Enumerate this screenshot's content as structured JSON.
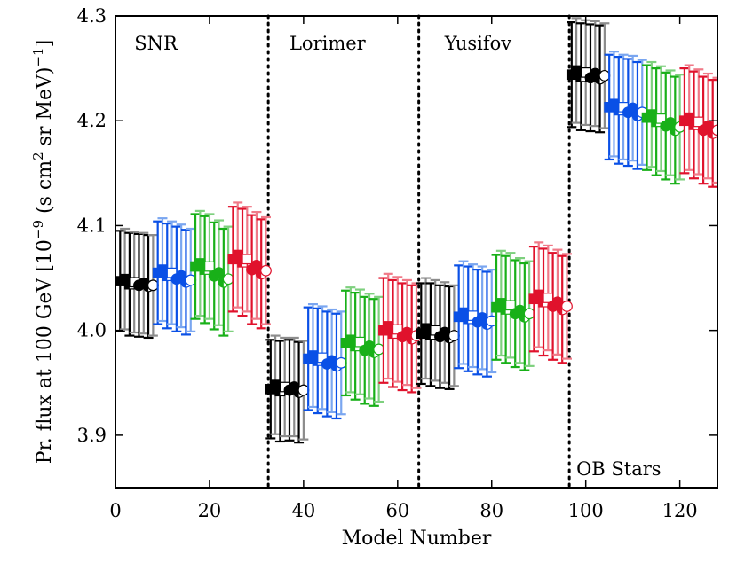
{
  "chart_data": {
    "type": "scatter",
    "title": "",
    "xlabel": "Model Number",
    "ylabel_parts": {
      "pre": "Pr. flux at 100 GeV [10",
      "exp1": "−9",
      "mid": " (s cm",
      "exp2": "2",
      "post": " sr MeV)",
      "exp3": "−1",
      "end": "]"
    },
    "xlim": [
      0,
      128
    ],
    "ylim": [
      3.85,
      4.3
    ],
    "x_ticks": [
      0,
      20,
      40,
      60,
      80,
      100,
      120
    ],
    "x_tick_labels": [
      "0",
      "20",
      "40",
      "60",
      "80",
      "100",
      "120"
    ],
    "y_ticks": [
      3.9,
      4.0,
      4.1,
      4.2,
      4.3
    ],
    "y_tick_labels": [
      "3.9",
      "4.0",
      "4.1",
      "4.2",
      "4.3"
    ],
    "grid": false,
    "separators": [
      32.5,
      64.5,
      96.5
    ],
    "regions": [
      {
        "label": "SNR",
        "x": 4,
        "y": 4.268
      },
      {
        "label": "Lorimer",
        "x": 37,
        "y": 4.268
      },
      {
        "label": "Yusifov",
        "x": 70,
        "y": 4.268
      },
      {
        "label": "OB Stars",
        "x": 98,
        "y": 3.862
      }
    ],
    "colors": {
      "black": "#000000",
      "gray": "#8c8c8c",
      "blue": "#0a50e6",
      "lightblue": "#7aa6f0",
      "green": "#18b018",
      "lightgreen": "#7ed07e",
      "red": "#e0122c",
      "lightred": "#f07a88"
    },
    "series": [
      {
        "name": "SNR-black",
        "color_key": "black",
        "err_color_key": "gray",
        "x": [
          1,
          2,
          3,
          4,
          5,
          6,
          7,
          8
        ],
        "y": [
          4.047,
          4.049,
          4.044,
          4.046,
          4.043,
          4.045,
          4.042,
          4.043
        ],
        "err": [
          0.048,
          0.048,
          0.049,
          0.048,
          0.049,
          0.048,
          0.049,
          0.048
        ],
        "markers": [
          "s",
          "s",
          "s",
          "s",
          "o",
          "o",
          "o",
          "o"
        ],
        "fills": [
          "full",
          "full",
          "half",
          "open",
          "full",
          "full",
          "half",
          "open"
        ]
      },
      {
        "name": "SNR-blue",
        "color_key": "blue",
        "err_color_key": "lightblue",
        "x": [
          9,
          10,
          11,
          12,
          13,
          14,
          15,
          16
        ],
        "y": [
          4.055,
          4.058,
          4.052,
          4.055,
          4.049,
          4.052,
          4.046,
          4.048
        ],
        "err": [
          0.049,
          0.049,
          0.05,
          0.049,
          0.05,
          0.049,
          0.05,
          0.049
        ],
        "markers": [
          "s",
          "s",
          "s",
          "s",
          "o",
          "o",
          "o",
          "o"
        ],
        "fills": [
          "full",
          "full",
          "half",
          "open",
          "full",
          "full",
          "half",
          "open"
        ]
      },
      {
        "name": "SNR-green",
        "color_key": "green",
        "err_color_key": "lightgreen",
        "x": [
          17,
          18,
          19,
          20,
          21,
          22,
          23,
          24
        ],
        "y": [
          4.061,
          4.064,
          4.058,
          4.061,
          4.052,
          4.055,
          4.046,
          4.049
        ],
        "err": [
          0.05,
          0.05,
          0.051,
          0.05,
          0.051,
          0.05,
          0.051,
          0.05
        ],
        "markers": [
          "s",
          "s",
          "s",
          "s",
          "o",
          "o",
          "o",
          "o"
        ],
        "fills": [
          "full",
          "full",
          "half",
          "open",
          "full",
          "full",
          "half",
          "open"
        ]
      },
      {
        "name": "SNR-red",
        "color_key": "red",
        "err_color_key": "lightred",
        "x": [
          25,
          26,
          27,
          28,
          29,
          30,
          31,
          32
        ],
        "y": [
          4.068,
          4.072,
          4.065,
          4.068,
          4.058,
          4.062,
          4.054,
          4.057
        ],
        "err": [
          0.05,
          0.05,
          0.051,
          0.05,
          0.052,
          0.051,
          0.052,
          0.051
        ],
        "markers": [
          "s",
          "s",
          "s",
          "s",
          "o",
          "o",
          "o",
          "o"
        ],
        "fills": [
          "full",
          "full",
          "half",
          "open",
          "full",
          "full",
          "half",
          "open"
        ]
      },
      {
        "name": "Lorimer-black",
        "color_key": "black",
        "err_color_key": "gray",
        "x": [
          33,
          34,
          35,
          36,
          37,
          38,
          39,
          40
        ],
        "y": [
          3.944,
          3.948,
          3.942,
          3.946,
          3.943,
          3.946,
          3.941,
          3.943
        ],
        "err": [
          0.047,
          0.047,
          0.048,
          0.047,
          0.048,
          0.047,
          0.048,
          0.047
        ],
        "markers": [
          "s",
          "s",
          "s",
          "s",
          "o",
          "o",
          "o",
          "o"
        ],
        "fills": [
          "full",
          "full",
          "half",
          "open",
          "full",
          "full",
          "half",
          "open"
        ]
      },
      {
        "name": "Lorimer-blue",
        "color_key": "blue",
        "err_color_key": "lightblue",
        "x": [
          41,
          42,
          43,
          44,
          45,
          46,
          47,
          48
        ],
        "y": [
          3.973,
          3.976,
          3.971,
          3.974,
          3.968,
          3.971,
          3.966,
          3.969
        ],
        "err": [
          0.049,
          0.049,
          0.05,
          0.049,
          0.05,
          0.049,
          0.05,
          0.049
        ],
        "markers": [
          "s",
          "s",
          "s",
          "s",
          "o",
          "o",
          "o",
          "o"
        ],
        "fills": [
          "full",
          "full",
          "half",
          "open",
          "full",
          "full",
          "half",
          "open"
        ]
      },
      {
        "name": "Lorimer-green",
        "color_key": "green",
        "err_color_key": "lightgreen",
        "x": [
          49,
          50,
          51,
          52,
          53,
          54,
          55,
          56
        ],
        "y": [
          3.988,
          3.991,
          3.985,
          3.989,
          3.981,
          3.985,
          3.979,
          3.982
        ],
        "err": [
          0.05,
          0.05,
          0.051,
          0.05,
          0.051,
          0.05,
          0.051,
          0.05
        ],
        "markers": [
          "s",
          "s",
          "s",
          "s",
          "o",
          "o",
          "o",
          "o"
        ],
        "fills": [
          "full",
          "full",
          "half",
          "open",
          "full",
          "full",
          "half",
          "open"
        ]
      },
      {
        "name": "Lorimer-red",
        "color_key": "red",
        "err_color_key": "lightred",
        "x": [
          57,
          58,
          59,
          60,
          61,
          62,
          63,
          64
        ],
        "y": [
          4.0,
          4.004,
          3.997,
          4.001,
          3.994,
          3.998,
          3.992,
          3.995
        ],
        "err": [
          0.05,
          0.05,
          0.051,
          0.05,
          0.051,
          0.05,
          0.051,
          0.05
        ],
        "markers": [
          "s",
          "s",
          "s",
          "s",
          "o",
          "o",
          "o",
          "o"
        ],
        "fills": [
          "full",
          "full",
          "half",
          "open",
          "full",
          "full",
          "half",
          "open"
        ]
      },
      {
        "name": "Yusifov-black",
        "color_key": "black",
        "err_color_key": "gray",
        "x": [
          65,
          66,
          67,
          68,
          69,
          70,
          71,
          72
        ],
        "y": [
          3.997,
          4.002,
          3.996,
          4.0,
          3.994,
          3.998,
          3.993,
          3.995
        ],
        "err": [
          0.048,
          0.048,
          0.049,
          0.048,
          0.049,
          0.048,
          0.049,
          0.048
        ],
        "markers": [
          "s",
          "s",
          "s",
          "s",
          "o",
          "o",
          "o",
          "o"
        ],
        "fills": [
          "full",
          "full",
          "half",
          "open",
          "full",
          "full",
          "half",
          "open"
        ]
      },
      {
        "name": "Yusifov-blue",
        "color_key": "blue",
        "err_color_key": "lightblue",
        "x": [
          73,
          74,
          75,
          76,
          77,
          78,
          79,
          80
        ],
        "y": [
          4.013,
          4.017,
          4.011,
          4.014,
          4.008,
          4.012,
          4.006,
          4.009
        ],
        "err": [
          0.049,
          0.049,
          0.05,
          0.049,
          0.05,
          0.049,
          0.05,
          0.049
        ],
        "markers": [
          "s",
          "s",
          "s",
          "s",
          "o",
          "o",
          "o",
          "o"
        ],
        "fills": [
          "full",
          "full",
          "half",
          "open",
          "full",
          "full",
          "half",
          "open"
        ]
      },
      {
        "name": "Yusifov-green",
        "color_key": "green",
        "err_color_key": "lightgreen",
        "x": [
          81,
          82,
          83,
          84,
          85,
          86,
          87,
          88
        ],
        "y": [
          4.022,
          4.026,
          4.02,
          4.024,
          4.016,
          4.019,
          4.013,
          4.016
        ],
        "err": [
          0.05,
          0.05,
          0.051,
          0.05,
          0.051,
          0.05,
          0.051,
          0.05
        ],
        "markers": [
          "s",
          "s",
          "s",
          "s",
          "o",
          "o",
          "o",
          "o"
        ],
        "fills": [
          "full",
          "full",
          "half",
          "open",
          "full",
          "full",
          "half",
          "open"
        ]
      },
      {
        "name": "Yusifov-red",
        "color_key": "red",
        "err_color_key": "lightred",
        "x": [
          89,
          90,
          91,
          92,
          93,
          94,
          95,
          96
        ],
        "y": [
          4.03,
          4.034,
          4.027,
          4.031,
          4.023,
          4.027,
          4.02,
          4.023
        ],
        "err": [
          0.05,
          0.05,
          0.051,
          0.05,
          0.051,
          0.05,
          0.051,
          0.05
        ],
        "markers": [
          "s",
          "s",
          "s",
          "s",
          "o",
          "o",
          "o",
          "o"
        ],
        "fills": [
          "full",
          "full",
          "half",
          "open",
          "full",
          "full",
          "half",
          "open"
        ]
      },
      {
        "name": "OB-black",
        "color_key": "black",
        "err_color_key": "gray",
        "x": [
          97,
          98,
          99,
          100,
          101,
          102,
          103,
          104
        ],
        "y": [
          4.244,
          4.248,
          4.242,
          4.246,
          4.241,
          4.245,
          4.24,
          4.243
        ],
        "err": [
          0.05,
          0.05,
          0.051,
          0.05,
          0.051,
          0.05,
          0.051,
          0.05
        ],
        "markers": [
          "s",
          "s",
          "s",
          "s",
          "o",
          "o",
          "o",
          "o"
        ],
        "fills": [
          "full",
          "full",
          "half",
          "open",
          "full",
          "full",
          "half",
          "open"
        ]
      },
      {
        "name": "OB-blue",
        "color_key": "blue",
        "err_color_key": "lightblue",
        "x": [
          105,
          106,
          107,
          108,
          109,
          110,
          111,
          112
        ],
        "y": [
          4.213,
          4.216,
          4.21,
          4.213,
          4.208,
          4.212,
          4.205,
          4.208
        ],
        "err": [
          0.05,
          0.05,
          0.051,
          0.05,
          0.051,
          0.05,
          0.051,
          0.05
        ],
        "markers": [
          "s",
          "s",
          "s",
          "s",
          "o",
          "o",
          "o",
          "o"
        ],
        "fills": [
          "full",
          "full",
          "half",
          "open",
          "full",
          "full",
          "half",
          "open"
        ]
      },
      {
        "name": "OB-green",
        "color_key": "green",
        "err_color_key": "lightgreen",
        "x": [
          113,
          114,
          115,
          116,
          117,
          118,
          119,
          120
        ],
        "y": [
          4.203,
          4.206,
          4.199,
          4.202,
          4.195,
          4.198,
          4.191,
          4.194
        ],
        "err": [
          0.05,
          0.05,
          0.051,
          0.05,
          0.051,
          0.05,
          0.051,
          0.05
        ],
        "markers": [
          "s",
          "s",
          "s",
          "s",
          "o",
          "o",
          "o",
          "o"
        ],
        "fills": [
          "full",
          "full",
          "half",
          "open",
          "full",
          "full",
          "half",
          "open"
        ]
      },
      {
        "name": "OB-red",
        "color_key": "red",
        "err_color_key": "lightred",
        "x": [
          121,
          122,
          123,
          124,
          125,
          126,
          127,
          128
        ],
        "y": [
          4.2,
          4.203,
          4.196,
          4.199,
          4.191,
          4.195,
          4.188,
          4.191
        ],
        "err": [
          0.05,
          0.05,
          0.051,
          0.05,
          0.051,
          0.05,
          0.051,
          0.05
        ],
        "markers": [
          "s",
          "s",
          "s",
          "s",
          "o",
          "o",
          "o",
          "o"
        ],
        "fills": [
          "full",
          "full",
          "half",
          "open",
          "full",
          "full",
          "half",
          "open"
        ]
      }
    ]
  }
}
